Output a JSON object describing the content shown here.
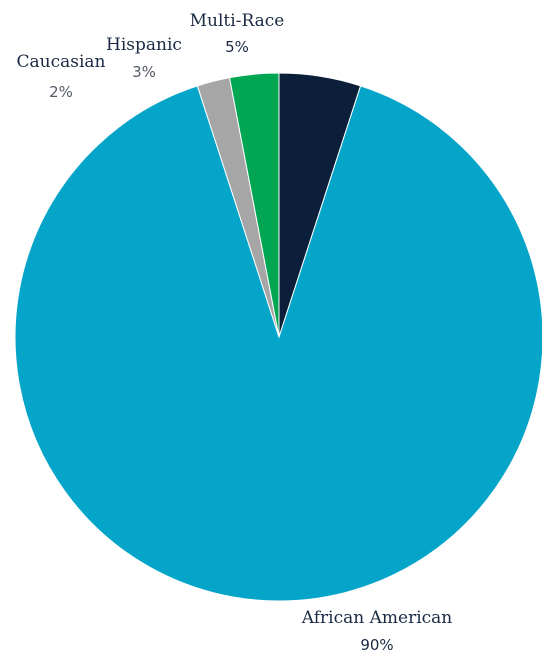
{
  "chart_data": {
    "type": "pie",
    "title": "",
    "slices": [
      {
        "label": "Multi-Race",
        "value": 5,
        "display": "5%",
        "color": "#0b1f3a"
      },
      {
        "label": "African American",
        "value": 90,
        "display": "90%",
        "color": "#04a5c9"
      },
      {
        "label": "Caucasian",
        "value": 2,
        "display": "2%",
        "color": "#a6a6a6"
      },
      {
        "label": "Hispanic",
        "value": 3,
        "display": "3%",
        "color": "#00a651"
      }
    ],
    "start_angle_deg": 0,
    "direction": "clockwise",
    "text_colors": {
      "category": "#1a2a44",
      "percent": "#555a66"
    }
  }
}
